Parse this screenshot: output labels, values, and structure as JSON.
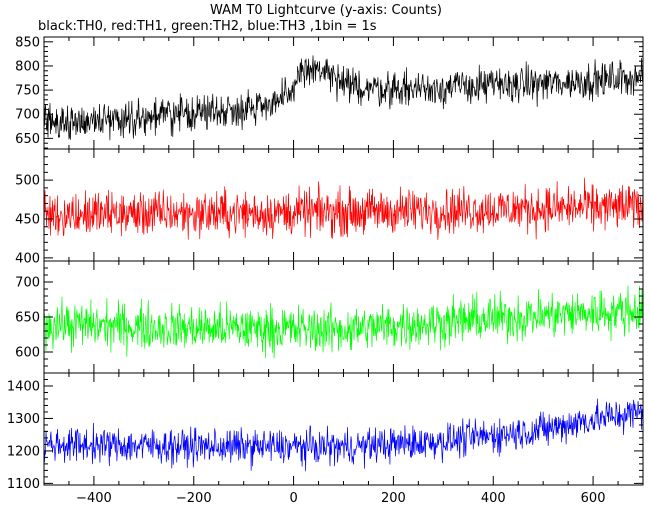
{
  "chart_data": {
    "type": "line",
    "title": "WAM T0 Lightcurve (y-axis: Counts)",
    "subtitle": "black:TH0, red:TH1, green:TH2, blue:TH3 ,1bin = 1s",
    "xlabel": "",
    "ylabel": "",
    "xlim": [
      -500,
      700
    ],
    "x_ticks": [
      -400,
      -200,
      0,
      200,
      400,
      600
    ],
    "x_minor_step": 50,
    "grid": false,
    "x_sampling": {
      "start": -500,
      "end": 700,
      "step": 1
    },
    "panels": [
      {
        "name": "TH0",
        "color": "#000000",
        "ylim": [
          628,
          860
        ],
        "y_ticks": [
          650,
          700,
          750,
          800,
          850
        ],
        "y_minor_step": 10,
        "trend": [
          [
            -500,
            682
          ],
          [
            -300,
            694
          ],
          [
            -100,
            712
          ],
          [
            0,
            736
          ],
          [
            8,
            792
          ],
          [
            60,
            790
          ],
          [
            100,
            758
          ],
          [
            200,
            752
          ],
          [
            400,
            760
          ],
          [
            550,
            766
          ],
          [
            700,
            778
          ]
        ],
        "noise_amplitude": 30
      },
      {
        "name": "TH1",
        "color": "#ff0000",
        "ylim": [
          396,
          540
        ],
        "y_ticks": [
          400,
          450,
          500
        ],
        "y_minor_step": 10,
        "trend": [
          [
            -500,
            456
          ],
          [
            0,
            458
          ],
          [
            300,
            461
          ],
          [
            700,
            466
          ]
        ],
        "noise_amplitude": 24
      },
      {
        "name": "TH2",
        "color": "#00ff00",
        "ylim": [
          570,
          730
        ],
        "y_ticks": [
          600,
          650,
          700
        ],
        "y_minor_step": 10,
        "trend": [
          [
            -500,
            640
          ],
          [
            -200,
            634
          ],
          [
            100,
            632
          ],
          [
            400,
            648
          ],
          [
            700,
            660
          ]
        ],
        "noise_amplitude": 27
      },
      {
        "name": "TH3",
        "color": "#0000ff",
        "ylim": [
          1095,
          1440
        ],
        "y_ticks": [
          1100,
          1200,
          1300,
          1400
        ],
        "y_minor_step": 20,
        "trend": [
          [
            -500,
            1220
          ],
          [
            -200,
            1214
          ],
          [
            100,
            1212
          ],
          [
            300,
            1230
          ],
          [
            500,
            1265
          ],
          [
            600,
            1298
          ],
          [
            700,
            1320
          ]
        ],
        "noise_amplitude": 44
      }
    ]
  }
}
